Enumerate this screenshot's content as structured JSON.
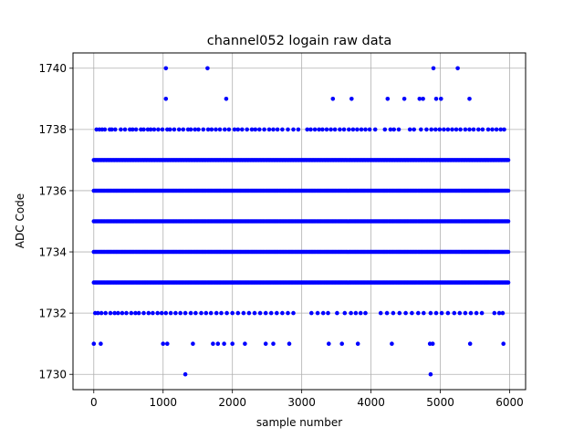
{
  "chart_data": {
    "type": "scatter",
    "title": "channel052 logain raw data",
    "xlabel": "sample number",
    "ylabel": "ADC Code",
    "xlim": [
      -300,
      6230
    ],
    "ylim": [
      1729.5,
      1740.5
    ],
    "xticks": [
      0,
      1000,
      2000,
      3000,
      4000,
      5000,
      6000
    ],
    "yticks": [
      1730,
      1732,
      1734,
      1736,
      1738,
      1740
    ],
    "grid": true,
    "marker_color": "#0000ff",
    "n_samples": 6000,
    "dense_levels": [
      1733,
      1734,
      1735,
      1736,
      1737
    ],
    "level_1738_x": [
      40,
      80,
      120,
      160,
      230,
      260,
      310,
      390,
      450,
      520,
      560,
      610,
      680,
      720,
      780,
      820,
      870,
      930,
      990,
      1060,
      1100,
      1160,
      1230,
      1290,
      1360,
      1400,
      1460,
      1510,
      1580,
      1650,
      1700,
      1760,
      1820,
      1890,
      1950,
      2030,
      2080,
      2140,
      2210,
      2280,
      2330,
      2390,
      2460,
      2530,
      2590,
      2650,
      2720,
      2800,
      2880,
      2950,
      3080,
      3130,
      3190,
      3250,
      3300,
      3360,
      3420,
      3480,
      3550,
      3610,
      3680,
      3740,
      3800,
      3860,
      3920,
      3980,
      4060,
      4200,
      4280,
      4330,
      4400,
      4560,
      4620,
      4720,
      4800,
      4870,
      4930,
      4990,
      5050,
      5110,
      5170,
      5230,
      5290,
      5360,
      5420,
      5480,
      5550,
      5610,
      5690,
      5750,
      5810,
      5870,
      5920
    ],
    "level_1732_x": [
      20,
      60,
      110,
      170,
      240,
      300,
      350,
      410,
      470,
      540,
      600,
      650,
      720,
      790,
      850,
      920,
      980,
      1040,
      1110,
      1180,
      1250,
      1320,
      1400,
      1470,
      1550,
      1620,
      1690,
      1770,
      1840,
      1920,
      2000,
      2080,
      2160,
      2240,
      2320,
      2400,
      2480,
      2560,
      2640,
      2720,
      2800,
      2880,
      3140,
      3230,
      3310,
      3380,
      3510,
      3620,
      3710,
      3780,
      3850,
      3920,
      4140,
      4230,
      4320,
      4410,
      4500,
      4590,
      4680,
      4760,
      4860,
      4940,
      5020,
      5110,
      5200,
      5280,
      5360,
      5440,
      5520,
      5600,
      5780,
      5850,
      5900
    ],
    "level_1731_x": [
      0,
      100,
      1000,
      1060,
      1430,
      1720,
      1790,
      1880,
      2000,
      2180,
      2480,
      2590,
      2820,
      3390,
      3580,
      3810,
      4300,
      4850,
      4890,
      5430,
      5910
    ],
    "level_1730_x": [
      1320,
      4860
    ],
    "level_1739_x": [
      1040,
      1910,
      3450,
      3720,
      4240,
      4480,
      4700,
      4750,
      4940,
      5010,
      5420
    ],
    "level_1740_x": [
      1040,
      1640,
      4900,
      5250
    ]
  }
}
